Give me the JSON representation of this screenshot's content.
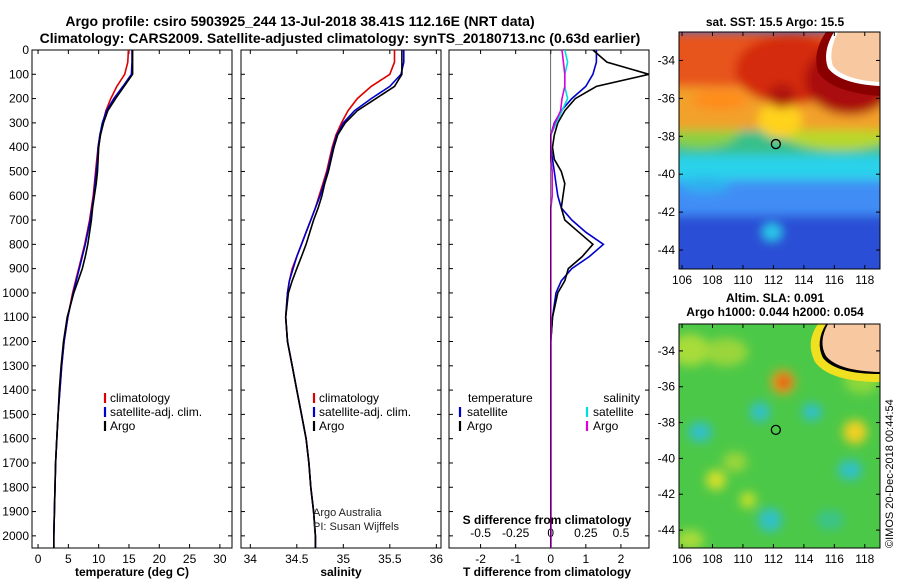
{
  "title": {
    "line1": "Argo profile: csiro 5903925_244 13-Jul-2018 38.41S 112.16E (NRT data)",
    "line2": "Climatology: CARS2009. Satellite-adjusted climatology: synTS_20180713.nc (0.63d earlier)"
  },
  "credit": {
    "line1": "Argo Australia",
    "line2": "PI: Susan Wijffels"
  },
  "timestamp": "©IMOS 20-Dec-2018 00:44:54",
  "colors": {
    "climatology": "#dd0000",
    "satellite": "#0000cc",
    "argo": "#000000",
    "s_satellite": "#00dddd",
    "s_argo": "#dd00dd"
  },
  "depth_ticks": [
    0,
    100,
    200,
    300,
    400,
    500,
    600,
    700,
    800,
    900,
    1000,
    1100,
    1200,
    1300,
    1400,
    1500,
    1600,
    1700,
    1800,
    1900,
    2000
  ],
  "depth_range": [
    0,
    2050
  ],
  "depth": [
    0,
    50,
    100,
    150,
    200,
    250,
    300,
    350,
    400,
    450,
    500,
    550,
    600,
    650,
    700,
    750,
    800,
    850,
    900,
    950,
    1000,
    1100,
    1200,
    1300,
    1400,
    1500,
    1600,
    1700,
    1800,
    1900,
    2000,
    2050
  ],
  "chart_data": [
    {
      "type": "line",
      "xlabel": "temperature (deg C)",
      "xticks": [
        0,
        5,
        10,
        15,
        20,
        25,
        30
      ],
      "xlim": [
        -1,
        32
      ],
      "legend": [
        "climatology",
        "satellite-adj. clim.",
        "Argo"
      ],
      "legend_placement": "center",
      "series": [
        {
          "name": "climatology",
          "color": "#dd0000",
          "values": [
            14.9,
            14.8,
            14.3,
            13.0,
            12.0,
            11.2,
            10.7,
            10.2,
            9.9,
            9.7,
            9.5,
            9.3,
            9.1,
            8.8,
            8.5,
            8.1,
            7.7,
            7.2,
            6.7,
            6.2,
            5.7,
            4.9,
            4.3,
            3.9,
            3.6,
            3.3,
            3.1,
            2.9,
            2.8,
            2.7,
            2.6,
            2.6
          ]
        },
        {
          "name": "satellite-adj. clim.",
          "color": "#0000cc",
          "values": [
            15.5,
            15.5,
            15.4,
            14.0,
            12.5,
            11.3,
            10.6,
            10.2,
            9.9,
            9.8,
            9.6,
            9.4,
            9.2,
            8.9,
            8.6,
            8.2,
            7.8,
            7.3,
            6.8,
            6.3,
            5.8,
            4.9,
            4.3,
            3.9,
            3.6,
            3.3,
            3.1,
            2.9,
            2.8,
            2.7,
            2.6,
            2.6
          ]
        },
        {
          "name": "Argo",
          "color": "#000000",
          "values": [
            15.6,
            15.6,
            15.6,
            14.2,
            12.8,
            11.5,
            10.8,
            10.3,
            10.0,
            9.9,
            9.8,
            9.6,
            9.3,
            9.0,
            8.8,
            8.5,
            8.2,
            7.8,
            7.3,
            6.6,
            5.9,
            4.8,
            4.2,
            3.8,
            3.5,
            3.3,
            3.1,
            2.9,
            2.8,
            2.7,
            2.6,
            2.6
          ]
        }
      ]
    },
    {
      "type": "line",
      "xlabel": "salinity",
      "xticks": [
        34,
        34.5,
        35,
        35.5,
        36
      ],
      "xtick_labels": [
        "34",
        "34.5",
        "35",
        "35.5",
        "36"
      ],
      "xlim": [
        33.9,
        36.05
      ],
      "legend": [
        "climatology",
        "satellite-adj. clim.",
        "Argo"
      ],
      "legend_placement": "center",
      "series": [
        {
          "name": "climatology",
          "color": "#dd0000",
          "values": [
            35.55,
            35.55,
            35.5,
            35.3,
            35.15,
            35.05,
            34.98,
            34.92,
            34.88,
            34.85,
            34.82,
            34.78,
            34.74,
            34.7,
            34.65,
            34.6,
            34.55,
            34.5,
            34.45,
            34.42,
            34.4,
            34.38,
            34.4,
            34.45,
            34.5,
            34.55,
            34.6,
            34.63,
            34.65,
            34.68,
            34.7,
            34.7
          ]
        },
        {
          "name": "satellite-adj. clim.",
          "color": "#0000cc",
          "values": [
            35.65,
            35.65,
            35.62,
            35.5,
            35.3,
            35.12,
            35.0,
            34.93,
            34.89,
            34.86,
            34.83,
            34.79,
            34.75,
            34.7,
            34.65,
            34.6,
            34.55,
            34.5,
            34.46,
            34.42,
            34.4,
            34.38,
            34.4,
            34.45,
            34.5,
            34.55,
            34.6,
            34.63,
            34.65,
            34.68,
            34.7,
            34.7
          ]
        },
        {
          "name": "Argo",
          "color": "#000000",
          "values": [
            35.63,
            35.63,
            35.63,
            35.55,
            35.35,
            35.15,
            35.02,
            34.94,
            34.9,
            34.87,
            34.84,
            34.8,
            34.77,
            34.73,
            34.68,
            34.64,
            34.6,
            34.55,
            34.5,
            34.45,
            34.41,
            34.38,
            34.4,
            34.45,
            34.5,
            34.55,
            34.6,
            34.63,
            34.65,
            34.68,
            34.7,
            34.7
          ]
        }
      ]
    },
    {
      "type": "line",
      "xlabel": "T difference from climatology",
      "x2label": "S difference from climatology",
      "xticks": [
        -2,
        -1,
        0,
        1,
        2
      ],
      "xlim": [
        -2.9,
        2.8
      ],
      "x2ticks": [
        -0.5,
        -0.25,
        0,
        0.25,
        0.5
      ],
      "x2tick_labels": [
        "-0.5",
        "-0.25",
        "0",
        "0.25",
        "0.5"
      ],
      "x2lim": [
        -0.725,
        0.7
      ],
      "legend_t": {
        "title": "temperature",
        "entries": [
          "satellite",
          "Argo"
        ]
      },
      "legend_s": {
        "title": "salinity",
        "entries": [
          "satellite",
          "Argo"
        ]
      },
      "series": [
        {
          "name": "satellite",
          "quantity": "temperature",
          "axis": "x",
          "color": "#0000cc",
          "values": [
            1.3,
            1.3,
            1.2,
            1.0,
            0.6,
            0.3,
            0.1,
            0.0,
            0.0,
            0.05,
            0.1,
            0.15,
            0.2,
            0.3,
            0.6,
            1.0,
            1.5,
            1.1,
            0.6,
            0.3,
            0.15,
            0.05,
            0.0,
            0.0,
            0.0,
            0.0,
            0.0,
            0.0,
            0.0,
            0.0,
            0.0,
            0.0
          ]
        },
        {
          "name": "Argo",
          "quantity": "temperature",
          "axis": "x",
          "color": "#000000",
          "values": [
            1.2,
            1.6,
            2.8,
            1.3,
            0.7,
            0.4,
            0.2,
            0.1,
            0.05,
            0.1,
            0.3,
            0.4,
            0.35,
            0.3,
            0.4,
            0.8,
            1.2,
            0.9,
            0.5,
            0.4,
            0.2,
            0.05,
            0.0,
            0.0,
            0.0,
            0.0,
            0.0,
            0.0,
            0.0,
            0.0,
            0.0,
            0.0
          ]
        },
        {
          "name": "satellite",
          "quantity": "salinity",
          "axis": "x2",
          "color": "#00dddd",
          "values": [
            0.1,
            0.12,
            0.1,
            0.1,
            0.12,
            0.08,
            0.04,
            0.0,
            0.0,
            0.0,
            0.01,
            0.01,
            0.01,
            0.0,
            0.0,
            0.0,
            0.0,
            0.0,
            0.0,
            0.0,
            0.0,
            0.0,
            0.0,
            0.0,
            0.0,
            0.0,
            0.0,
            0.0,
            0.0,
            0.0,
            0.0,
            0.0
          ]
        },
        {
          "name": "Argo",
          "quantity": "salinity",
          "axis": "x2",
          "color": "#dd00dd",
          "values": [
            0.08,
            0.09,
            0.1,
            0.1,
            0.08,
            0.07,
            0.03,
            0.0,
            0.0,
            0.0,
            0.01,
            0.01,
            0.01,
            0.0,
            0.0,
            0.0,
            0.0,
            0.0,
            0.0,
            0.0,
            0.0,
            0.0,
            0.0,
            0.0,
            0.0,
            0.0,
            0.0,
            0.0,
            0.0,
            0.0,
            0.0,
            0.0
          ]
        }
      ]
    },
    {
      "type": "heatmap",
      "title": "sat. SST: 15.5 Argo: 15.5",
      "xticks": [
        106,
        108,
        110,
        112,
        114,
        116,
        118
      ],
      "yticks": [
        -34,
        -36,
        -38,
        -40,
        -42,
        -44
      ],
      "xlim": [
        105.8,
        119.0
      ],
      "ylim": [
        -45.0,
        -32.5
      ],
      "argo_position": [
        112.16,
        -38.41
      ]
    },
    {
      "type": "heatmap",
      "title_line1": "Altim. SLA: 0.091",
      "title_line2": "Argo h1000: 0.044 h2000: 0.054",
      "xticks": [
        106,
        108,
        110,
        112,
        114,
        116,
        118
      ],
      "yticks": [
        -34,
        -36,
        -38,
        -40,
        -42,
        -44
      ],
      "xlim": [
        105.8,
        119.0
      ],
      "ylim": [
        -45.0,
        -32.5
      ],
      "argo_position": [
        112.16,
        -38.41
      ]
    }
  ]
}
